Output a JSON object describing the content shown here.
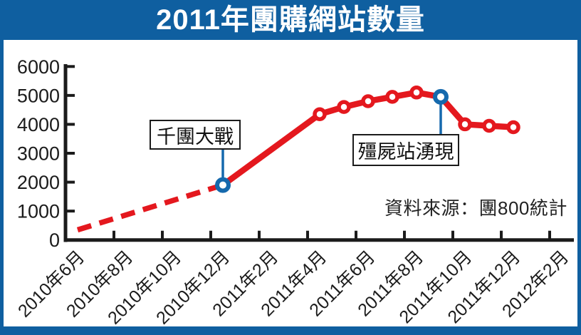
{
  "title": "2011年團購網站數量",
  "source": "資料來源：團800統計",
  "colors": {
    "frame": "#0F5FA0",
    "line": "#E4181E",
    "highlight": "#1569AD",
    "axis": "#1B1B1B",
    "marker_fill": "#FFFFFF",
    "background": "#FFFFFF"
  },
  "annotations": [
    {
      "label": "千團大戰",
      "point_month": "2010年12月",
      "month_index": 6,
      "value": 1900,
      "box_position": "above-line"
    },
    {
      "label": "殭屍站湧現",
      "point_month": "2011年9月",
      "month_index": 15,
      "value": 4950,
      "box_position": "below-line"
    }
  ],
  "chart_data": {
    "type": "line",
    "title": "2011年團購網站數量",
    "xlabel": "",
    "ylabel": "",
    "ylim": [
      0,
      6000
    ],
    "grid": false,
    "legend": "none",
    "y_tick_labels": [
      "6000",
      "5000",
      "4000",
      "3000",
      "2000",
      "1000",
      "0"
    ],
    "y_tick_values": [
      6000,
      5000,
      4000,
      3000,
      2000,
      1000,
      0
    ],
    "x_tick_labels": [
      "2010年6月",
      "2010年8月",
      "2010年10月",
      "2010年12月",
      "2011年2月",
      "2011年4月",
      "2011年6月",
      "2011年8月",
      "2011年10月",
      "2011年12月",
      "2012年2月"
    ],
    "x_tick_month_step": 2,
    "series": [
      {
        "name": "團購網站數量",
        "style": "red line, white-filled circle markers; first segment dashed (estimated data)",
        "points": [
          {
            "x": "2010年6月",
            "month_index": 0,
            "value": 350,
            "marker": "none",
            "segment_to_next": "dashed"
          },
          {
            "x": "2010年12月",
            "month_index": 6,
            "value": 1900,
            "marker": "blue"
          },
          {
            "x": "2011年4月",
            "month_index": 10,
            "value": 4350,
            "marker": "red"
          },
          {
            "x": "2011年5月",
            "month_index": 11,
            "value": 4600,
            "marker": "red"
          },
          {
            "x": "2011年6月",
            "month_index": 12,
            "value": 4800,
            "marker": "red"
          },
          {
            "x": "2011年7月",
            "month_index": 13,
            "value": 4950,
            "marker": "red"
          },
          {
            "x": "2011年8月",
            "month_index": 14,
            "value": 5100,
            "marker": "red"
          },
          {
            "x": "2011年9月",
            "month_index": 15,
            "value": 4950,
            "marker": "blue"
          },
          {
            "x": "2011年10月",
            "month_index": 16,
            "value": 4000,
            "marker": "red"
          },
          {
            "x": "2011年11月",
            "month_index": 17,
            "value": 3950,
            "marker": "red"
          },
          {
            "x": "2011年12月",
            "month_index": 18,
            "value": 3900,
            "marker": "red"
          }
        ]
      }
    ]
  }
}
